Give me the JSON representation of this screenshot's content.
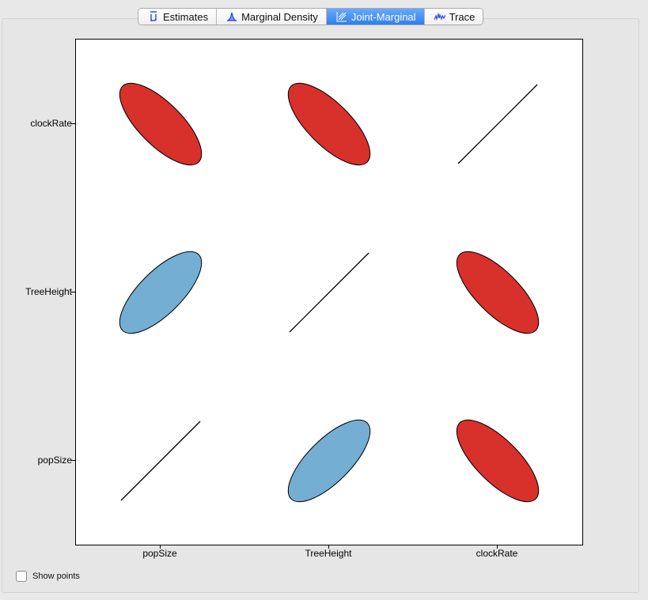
{
  "tabs": [
    {
      "label": "Estimates",
      "icon": "mu-icon",
      "active": false
    },
    {
      "label": "Marginal Density",
      "icon": "density-icon",
      "active": false
    },
    {
      "label": "Joint-Marginal",
      "icon": "joint-marginal-icon",
      "active": true
    },
    {
      "label": "Trace",
      "icon": "trace-icon",
      "active": false
    }
  ],
  "plot": {
    "y_labels": [
      "clockRate",
      "TreeHeight",
      "popSize"
    ],
    "x_labels": [
      "popSize",
      "TreeHeight",
      "clockRate"
    ]
  },
  "controls": {
    "show_points_label": "Show points",
    "show_points_checked": false
  },
  "colors": {
    "negative_correlation": "#d8302b",
    "positive_correlation": "#74aed3",
    "active_tab": "#3b86f3"
  },
  "chart_data": {
    "type": "scatter",
    "variables": [
      "popSize",
      "TreeHeight",
      "clockRate"
    ],
    "cells": [
      {
        "row": "clockRate",
        "col": "popSize",
        "correlation": "negative",
        "shape": "ellipse"
      },
      {
        "row": "clockRate",
        "col": "TreeHeight",
        "correlation": "negative",
        "shape": "ellipse"
      },
      {
        "row": "clockRate",
        "col": "clockRate",
        "correlation": "perfect",
        "shape": "line"
      },
      {
        "row": "TreeHeight",
        "col": "popSize",
        "correlation": "positive",
        "shape": "ellipse"
      },
      {
        "row": "TreeHeight",
        "col": "TreeHeight",
        "correlation": "perfect",
        "shape": "line"
      },
      {
        "row": "TreeHeight",
        "col": "clockRate",
        "correlation": "negative",
        "shape": "ellipse"
      },
      {
        "row": "popSize",
        "col": "popSize",
        "correlation": "perfect",
        "shape": "line"
      },
      {
        "row": "popSize",
        "col": "TreeHeight",
        "correlation": "positive",
        "shape": "ellipse"
      },
      {
        "row": "popSize",
        "col": "clockRate",
        "correlation": "negative",
        "shape": "ellipse"
      }
    ],
    "grid": false,
    "legend": "none"
  }
}
